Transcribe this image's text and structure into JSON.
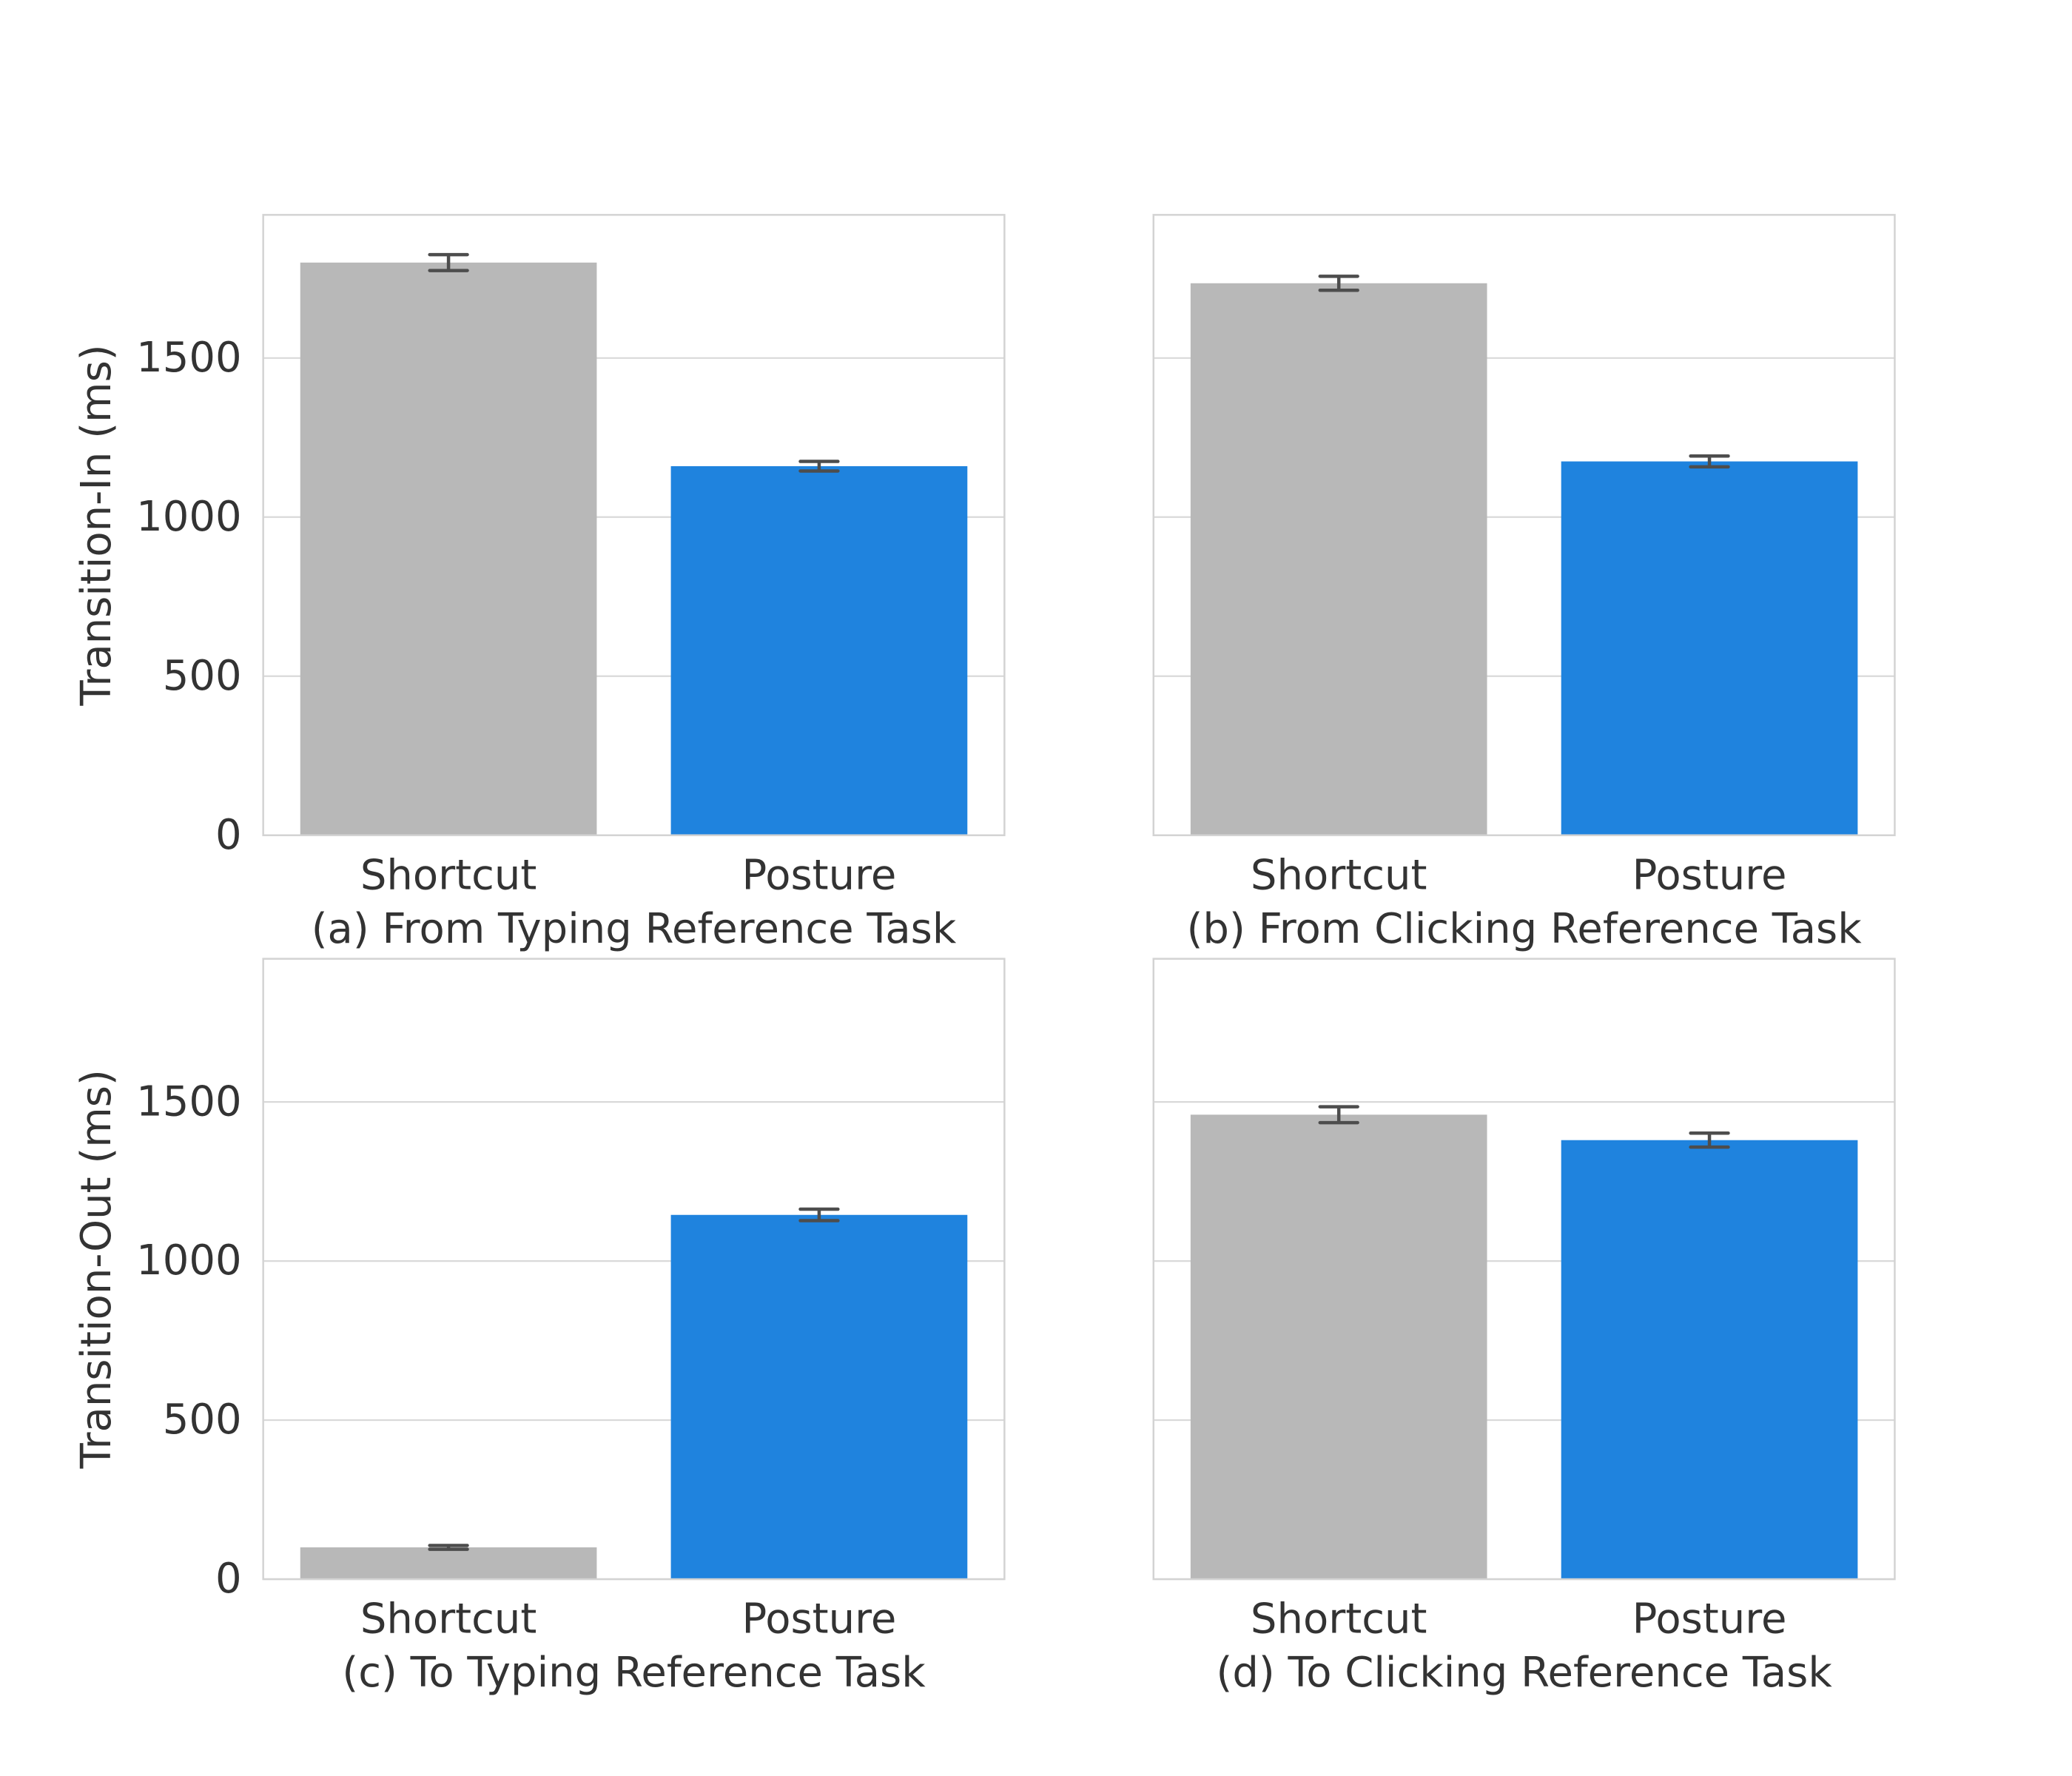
{
  "colors": {
    "shortcut": "#b8b8b8",
    "posture": "#1f83de",
    "error_bar": "#4d4d4d",
    "grid": "#d9d9d9",
    "frame": "#d3d3d3",
    "text": "#333333"
  },
  "y_axis_labels": [
    "Transition-In (ms)",
    "Transition-Out (ms)"
  ],
  "chart_data": [
    {
      "type": "bar",
      "caption": "(a) From Typing Reference Task",
      "categories": [
        "Shortcut",
        "Posture"
      ],
      "values": [
        1800,
        1160
      ],
      "errors": [
        25,
        15
      ],
      "ylim": [
        0,
        1950
      ],
      "yticks": [
        0,
        500,
        1000,
        1500
      ],
      "ylabel": "Transition-In (ms)",
      "grid": true
    },
    {
      "type": "bar",
      "caption": "(b) From Clicking Reference Task",
      "categories": [
        "Shortcut",
        "Posture"
      ],
      "values": [
        1735,
        1175
      ],
      "errors": [
        22,
        17
      ],
      "ylim": [
        0,
        1950
      ],
      "yticks": [
        0,
        500,
        1000,
        1500
      ],
      "ylabel": "",
      "grid": true
    },
    {
      "type": "bar",
      "caption": "(c) To Typing Reference Task",
      "categories": [
        "Shortcut",
        "Posture"
      ],
      "values": [
        100,
        1145
      ],
      "errors": [
        6,
        18
      ],
      "ylim": [
        0,
        1950
      ],
      "yticks": [
        0,
        500,
        1000,
        1500
      ],
      "ylabel": "Transition-Out (ms)",
      "grid": true
    },
    {
      "type": "bar",
      "caption": "(d) To Clicking Reference Task",
      "categories": [
        "Shortcut",
        "Posture"
      ],
      "values": [
        1460,
        1380
      ],
      "errors": [
        25,
        22
      ],
      "ylim": [
        0,
        1950
      ],
      "yticks": [
        0,
        500,
        1000,
        1500
      ],
      "ylabel": "",
      "grid": true
    }
  ]
}
